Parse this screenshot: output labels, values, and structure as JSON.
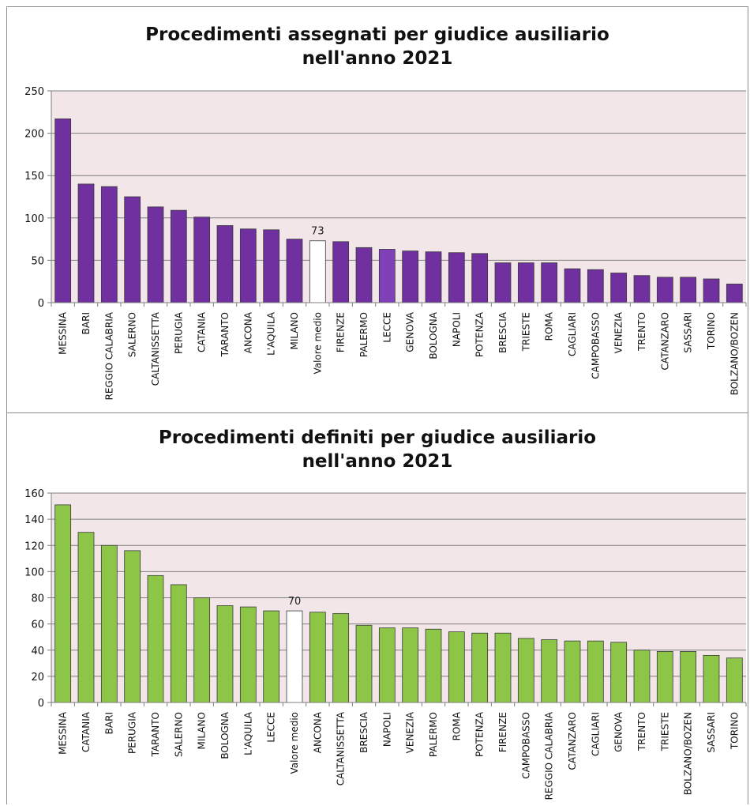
{
  "chart_data": [
    {
      "type": "bar",
      "title_line1": "Procedimenti assegnati per giudice ausiliario",
      "title_line2": "nell'anno 2021",
      "categories": [
        "MESSINA",
        "BARI",
        "REGGIO CALABRIA",
        "SALERNO",
        "CALTANISSETTA",
        "PERUGIA",
        "CATANIA",
        "TARANTO",
        "ANCONA",
        "L'AQUILA",
        "MILANO",
        "Valore medio",
        "FIRENZE",
        "PALERMO",
        "LECCE",
        "GENOVA",
        "BOLOGNA",
        "NAPOLI",
        "POTENZA",
        "BRESCIA",
        "TRIESTE",
        "ROMA",
        "CAGLIARI",
        "CAMPOBASSO",
        "VENEZIA",
        "TRENTO",
        "CATANZARO",
        "SASSARI",
        "TORINO",
        "BOLZANO/BOZEN"
      ],
      "values": [
        217,
        140,
        137,
        125,
        113,
        109,
        101,
        91,
        87,
        86,
        75,
        73,
        72,
        65,
        63,
        61,
        60,
        59,
        58,
        47,
        47,
        47,
        40,
        39,
        35,
        32,
        30,
        30,
        28,
        22
      ],
      "ylim": [
        0,
        250
      ],
      "yticks": [
        0,
        50,
        100,
        150,
        200,
        250
      ],
      "highlight_index": 11,
      "highlight_label": "73",
      "accent_index": 14,
      "bar_color": "#7030a0",
      "accent_color": "#8040b8",
      "highlight_color": "#ffffff",
      "plot_bg": "#f2e6e8",
      "grid": true,
      "legend": "none"
    },
    {
      "type": "bar",
      "title_line1": "Procedimenti definiti per giudice ausiliario",
      "title_line2": "nell'anno 2021",
      "categories": [
        "MESSINA",
        "CATANIA",
        "BARI",
        "PERUGIA",
        "TARANTO",
        "SALERNO",
        "MILANO",
        "BOLOGNA",
        "L'AQUILA",
        "LECCE",
        "Valore medio",
        "ANCONA",
        "CALTANISSETTA",
        "BRESCIA",
        "NAPOLI",
        "VENEZIA",
        "PALERMO",
        "ROMA",
        "POTENZA",
        "FIRENZE",
        "CAMPOBASSO",
        "REGGIO CALABRIA",
        "CATANZARO",
        "CAGLIARI",
        "GENOVA",
        "TRENTO",
        "TRIESTE",
        "BOLZANO/BOZEN",
        "SASSARI",
        "TORINO"
      ],
      "values": [
        151,
        130,
        120,
        116,
        97,
        90,
        80,
        74,
        73,
        70,
        70,
        69,
        68,
        59,
        57,
        57,
        56,
        54,
        53,
        53,
        49,
        48,
        47,
        47,
        46,
        40,
        39,
        39,
        36,
        34
      ],
      "ylim": [
        0,
        160
      ],
      "yticks": [
        0,
        20,
        40,
        60,
        80,
        100,
        120,
        140,
        160
      ],
      "highlight_index": 10,
      "highlight_label": "70",
      "accent_index": -1,
      "bar_color": "#8dc646",
      "accent_color": "#8dc646",
      "highlight_color": "#ffffff",
      "plot_bg": "#f2e6e8",
      "grid": true,
      "legend": "none"
    }
  ]
}
